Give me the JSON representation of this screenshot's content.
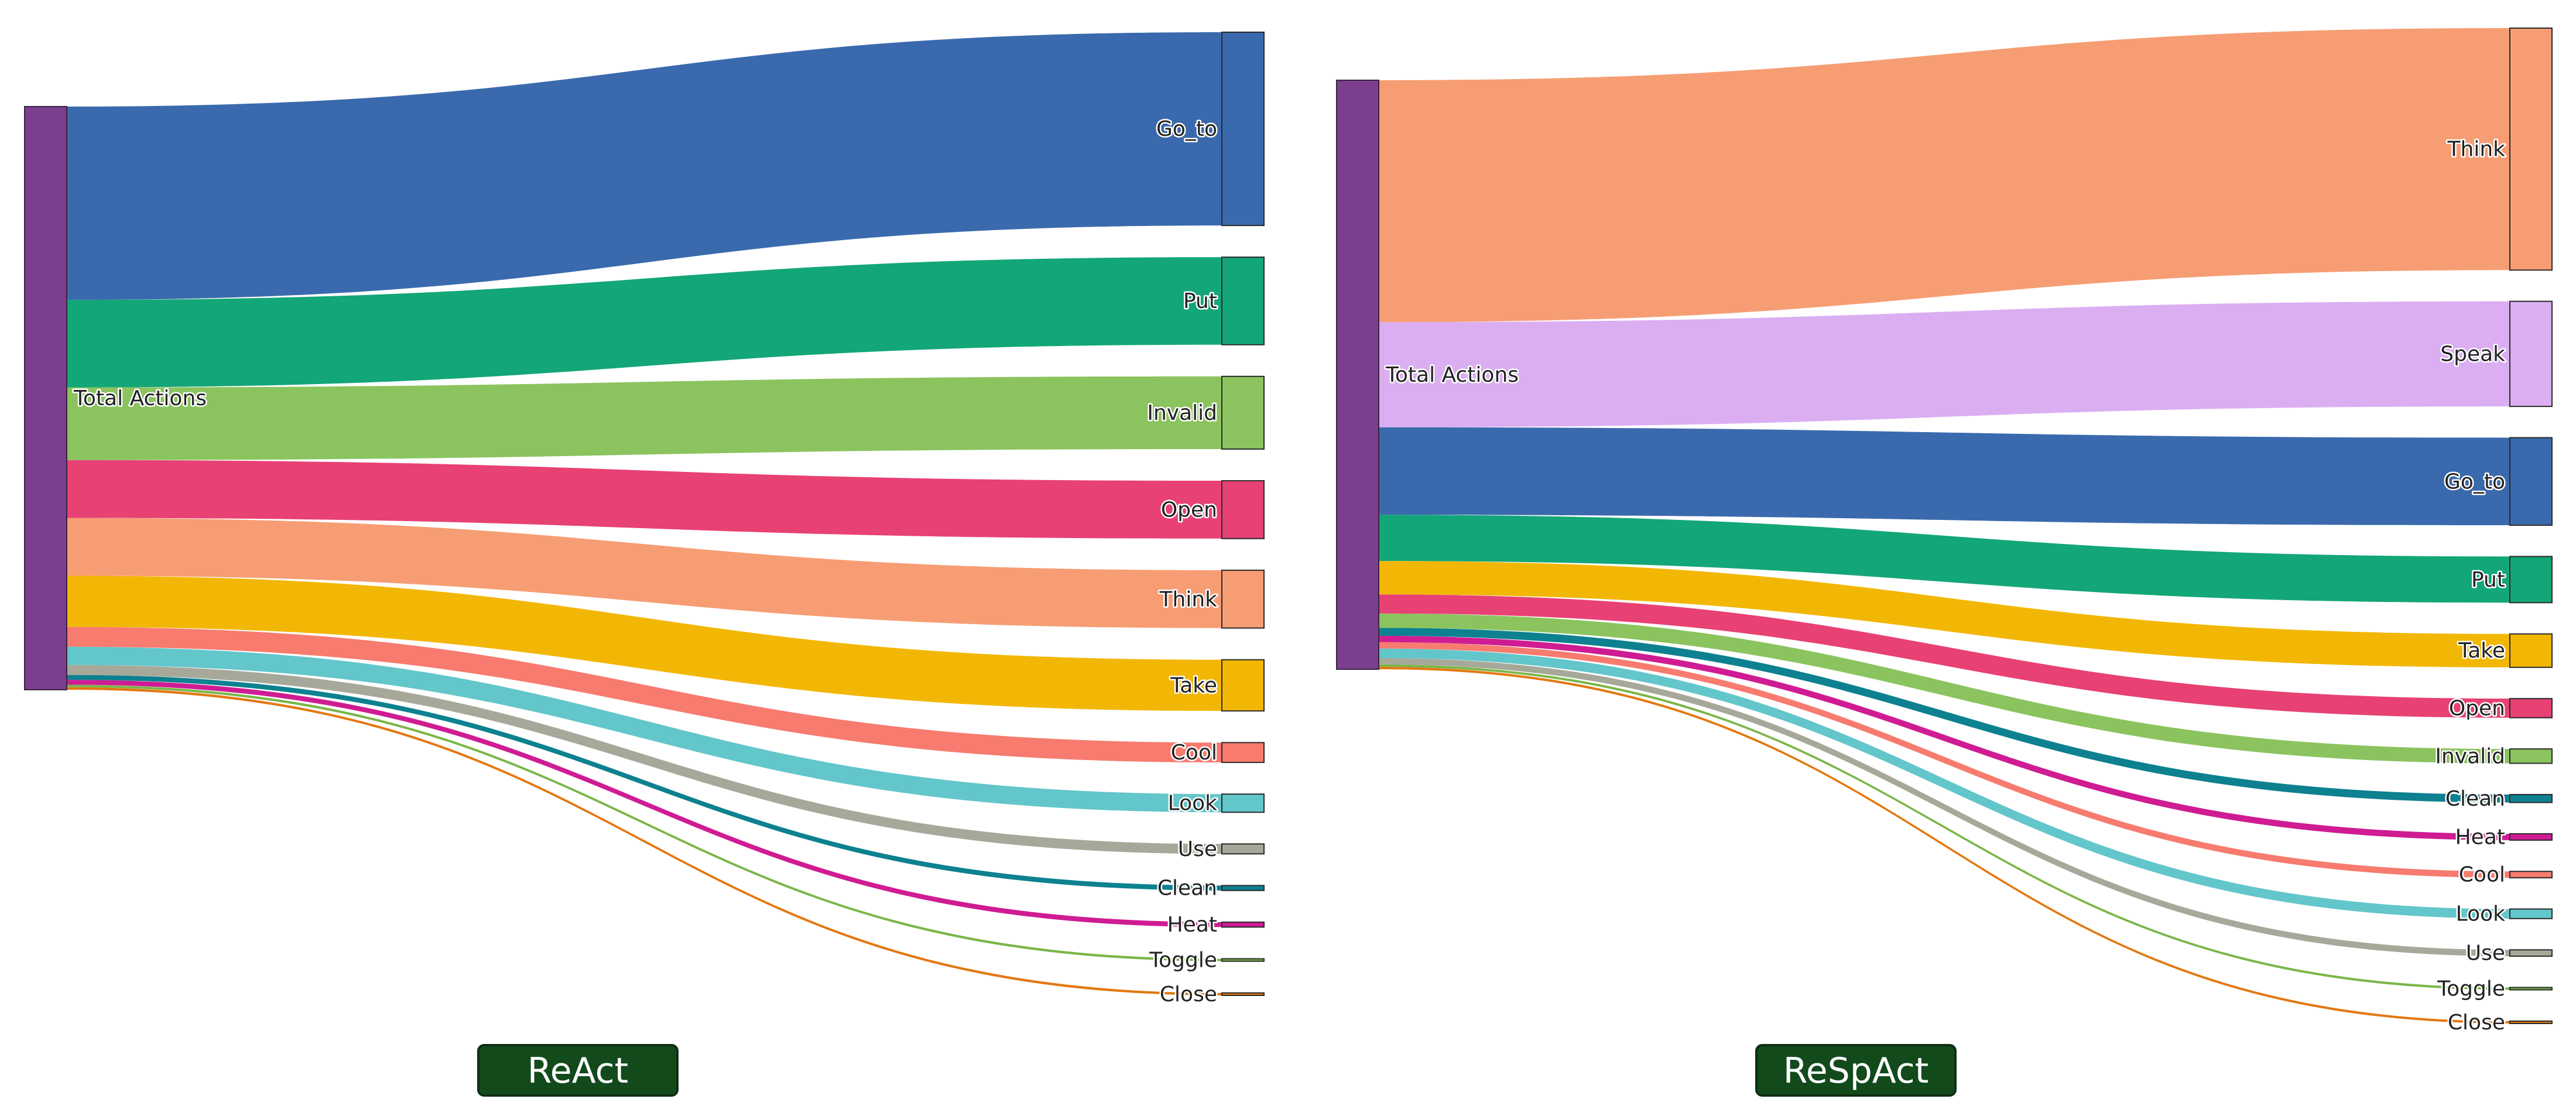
{
  "colors": {
    "source_node": "#7b3f8e",
    "title_bg": "#124a1c",
    "title_border": "#0d2e12",
    "title_text": "#ffffff"
  },
  "chart_data": [
    {
      "type": "sankey",
      "title": "ReAct",
      "source": "Total Actions",
      "flows": [
        {
          "target": "Go_to",
          "value": 117,
          "color": "#3a6aad"
        },
        {
          "target": "Put",
          "value": 53,
          "color": "#13a678"
        },
        {
          "target": "Invalid",
          "value": 44,
          "color": "#8bc45f"
        },
        {
          "target": "Open",
          "value": 35,
          "color": "#e84174"
        },
        {
          "target": "Think",
          "value": 35,
          "color": "#f79d74"
        },
        {
          "target": "Take",
          "value": 31,
          "color": "#f2b705"
        },
        {
          "target": "Cool",
          "value": 12,
          "color": "#f77b6f"
        },
        {
          "target": "Look",
          "value": 11,
          "color": "#63c6cb"
        },
        {
          "target": "Use",
          "value": 6,
          "color": "#a6a999"
        },
        {
          "target": "Clean",
          "value": 3,
          "color": "#0d818f"
        },
        {
          "target": "Heat",
          "value": 3,
          "color": "#cf1c93"
        },
        {
          "target": "Toggle",
          "value": 1.5,
          "color": "#7ab648"
        },
        {
          "target": "Close",
          "value": 1.5,
          "color": "#e37810"
        }
      ]
    },
    {
      "type": "sankey",
      "title": "ReSpAct",
      "source": "Total Actions",
      "flows": [
        {
          "target": "Think",
          "value": 152,
          "color": "#f79d74"
        },
        {
          "target": "Speak",
          "value": 66,
          "color": "#dbaef2"
        },
        {
          "target": "Go_to",
          "value": 55,
          "color": "#3a6aad"
        },
        {
          "target": "Put",
          "value": 29,
          "color": "#13a678"
        },
        {
          "target": "Take",
          "value": 21,
          "color": "#f2b705"
        },
        {
          "target": "Open",
          "value": 12,
          "color": "#e84174"
        },
        {
          "target": "Invalid",
          "value": 9,
          "color": "#8bc45f"
        },
        {
          "target": "Clean",
          "value": 5,
          "color": "#0d818f"
        },
        {
          "target": "Heat",
          "value": 4,
          "color": "#cf1c93"
        },
        {
          "target": "Cool",
          "value": 4,
          "color": "#f77b6f"
        },
        {
          "target": "Look",
          "value": 6,
          "color": "#63c6cb"
        },
        {
          "target": "Use",
          "value": 4,
          "color": "#a6a999"
        },
        {
          "target": "Toggle",
          "value": 1.5,
          "color": "#7ab648"
        },
        {
          "target": "Close",
          "value": 1.5,
          "color": "#e37810"
        }
      ]
    }
  ]
}
